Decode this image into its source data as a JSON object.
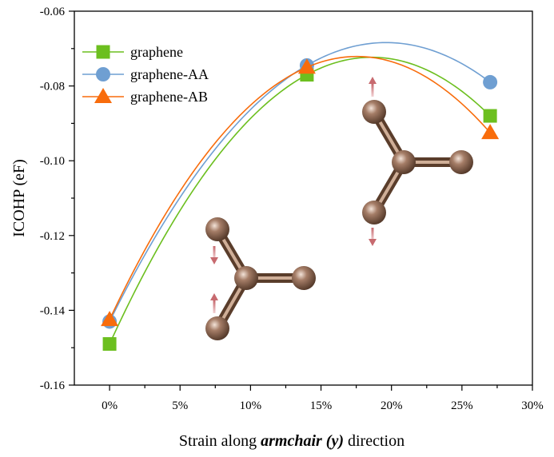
{
  "chart_data": {
    "type": "line",
    "title": "",
    "xlabel_parts": [
      {
        "text": "Strain along ",
        "style": "normal"
      },
      {
        "text": "armchair (y)",
        "style": "bold-italic"
      },
      {
        "text": " direction",
        "style": "normal"
      }
    ],
    "ylabel": "ICOHP (eF)",
    "xlim": [
      -0.025,
      0.3
    ],
    "ylim": [
      -0.16,
      -0.06
    ],
    "x_ticks": [
      0,
      0.05,
      0.1,
      0.15,
      0.2,
      0.25,
      0.3
    ],
    "x_tick_labels": [
      "0%",
      "5%",
      "10%",
      "15%",
      "20%",
      "25%",
      "30%"
    ],
    "y_ticks": [
      -0.16,
      -0.14,
      -0.12,
      -0.1,
      -0.08,
      -0.06
    ],
    "y_tick_labels": [
      "-0.16",
      "-0.14",
      "-0.12",
      "-0.10",
      "-0.08",
      "-0.06"
    ],
    "legend_position": "top-left",
    "series": [
      {
        "name": "graphene",
        "marker": "square",
        "color": "#6cbf1f",
        "x": [
          0,
          0.14,
          0.27
        ],
        "values": [
          -0.149,
          -0.077,
          -0.088
        ]
      },
      {
        "name": "graphene-AA",
        "marker": "circle",
        "color": "#6f9fd2",
        "x": [
          0,
          0.14,
          0.27
        ],
        "values": [
          -0.143,
          -0.0745,
          -0.079
        ]
      },
      {
        "name": "graphene-AB",
        "marker": "triangle",
        "color": "#f86c0c",
        "x": [
          0,
          0.14,
          0.27
        ],
        "values": [
          -0.1425,
          -0.075,
          -0.0925
        ]
      }
    ],
    "annotations": [
      "carbon-trimer-inset-unstrained",
      "carbon-trimer-inset-strained"
    ]
  }
}
